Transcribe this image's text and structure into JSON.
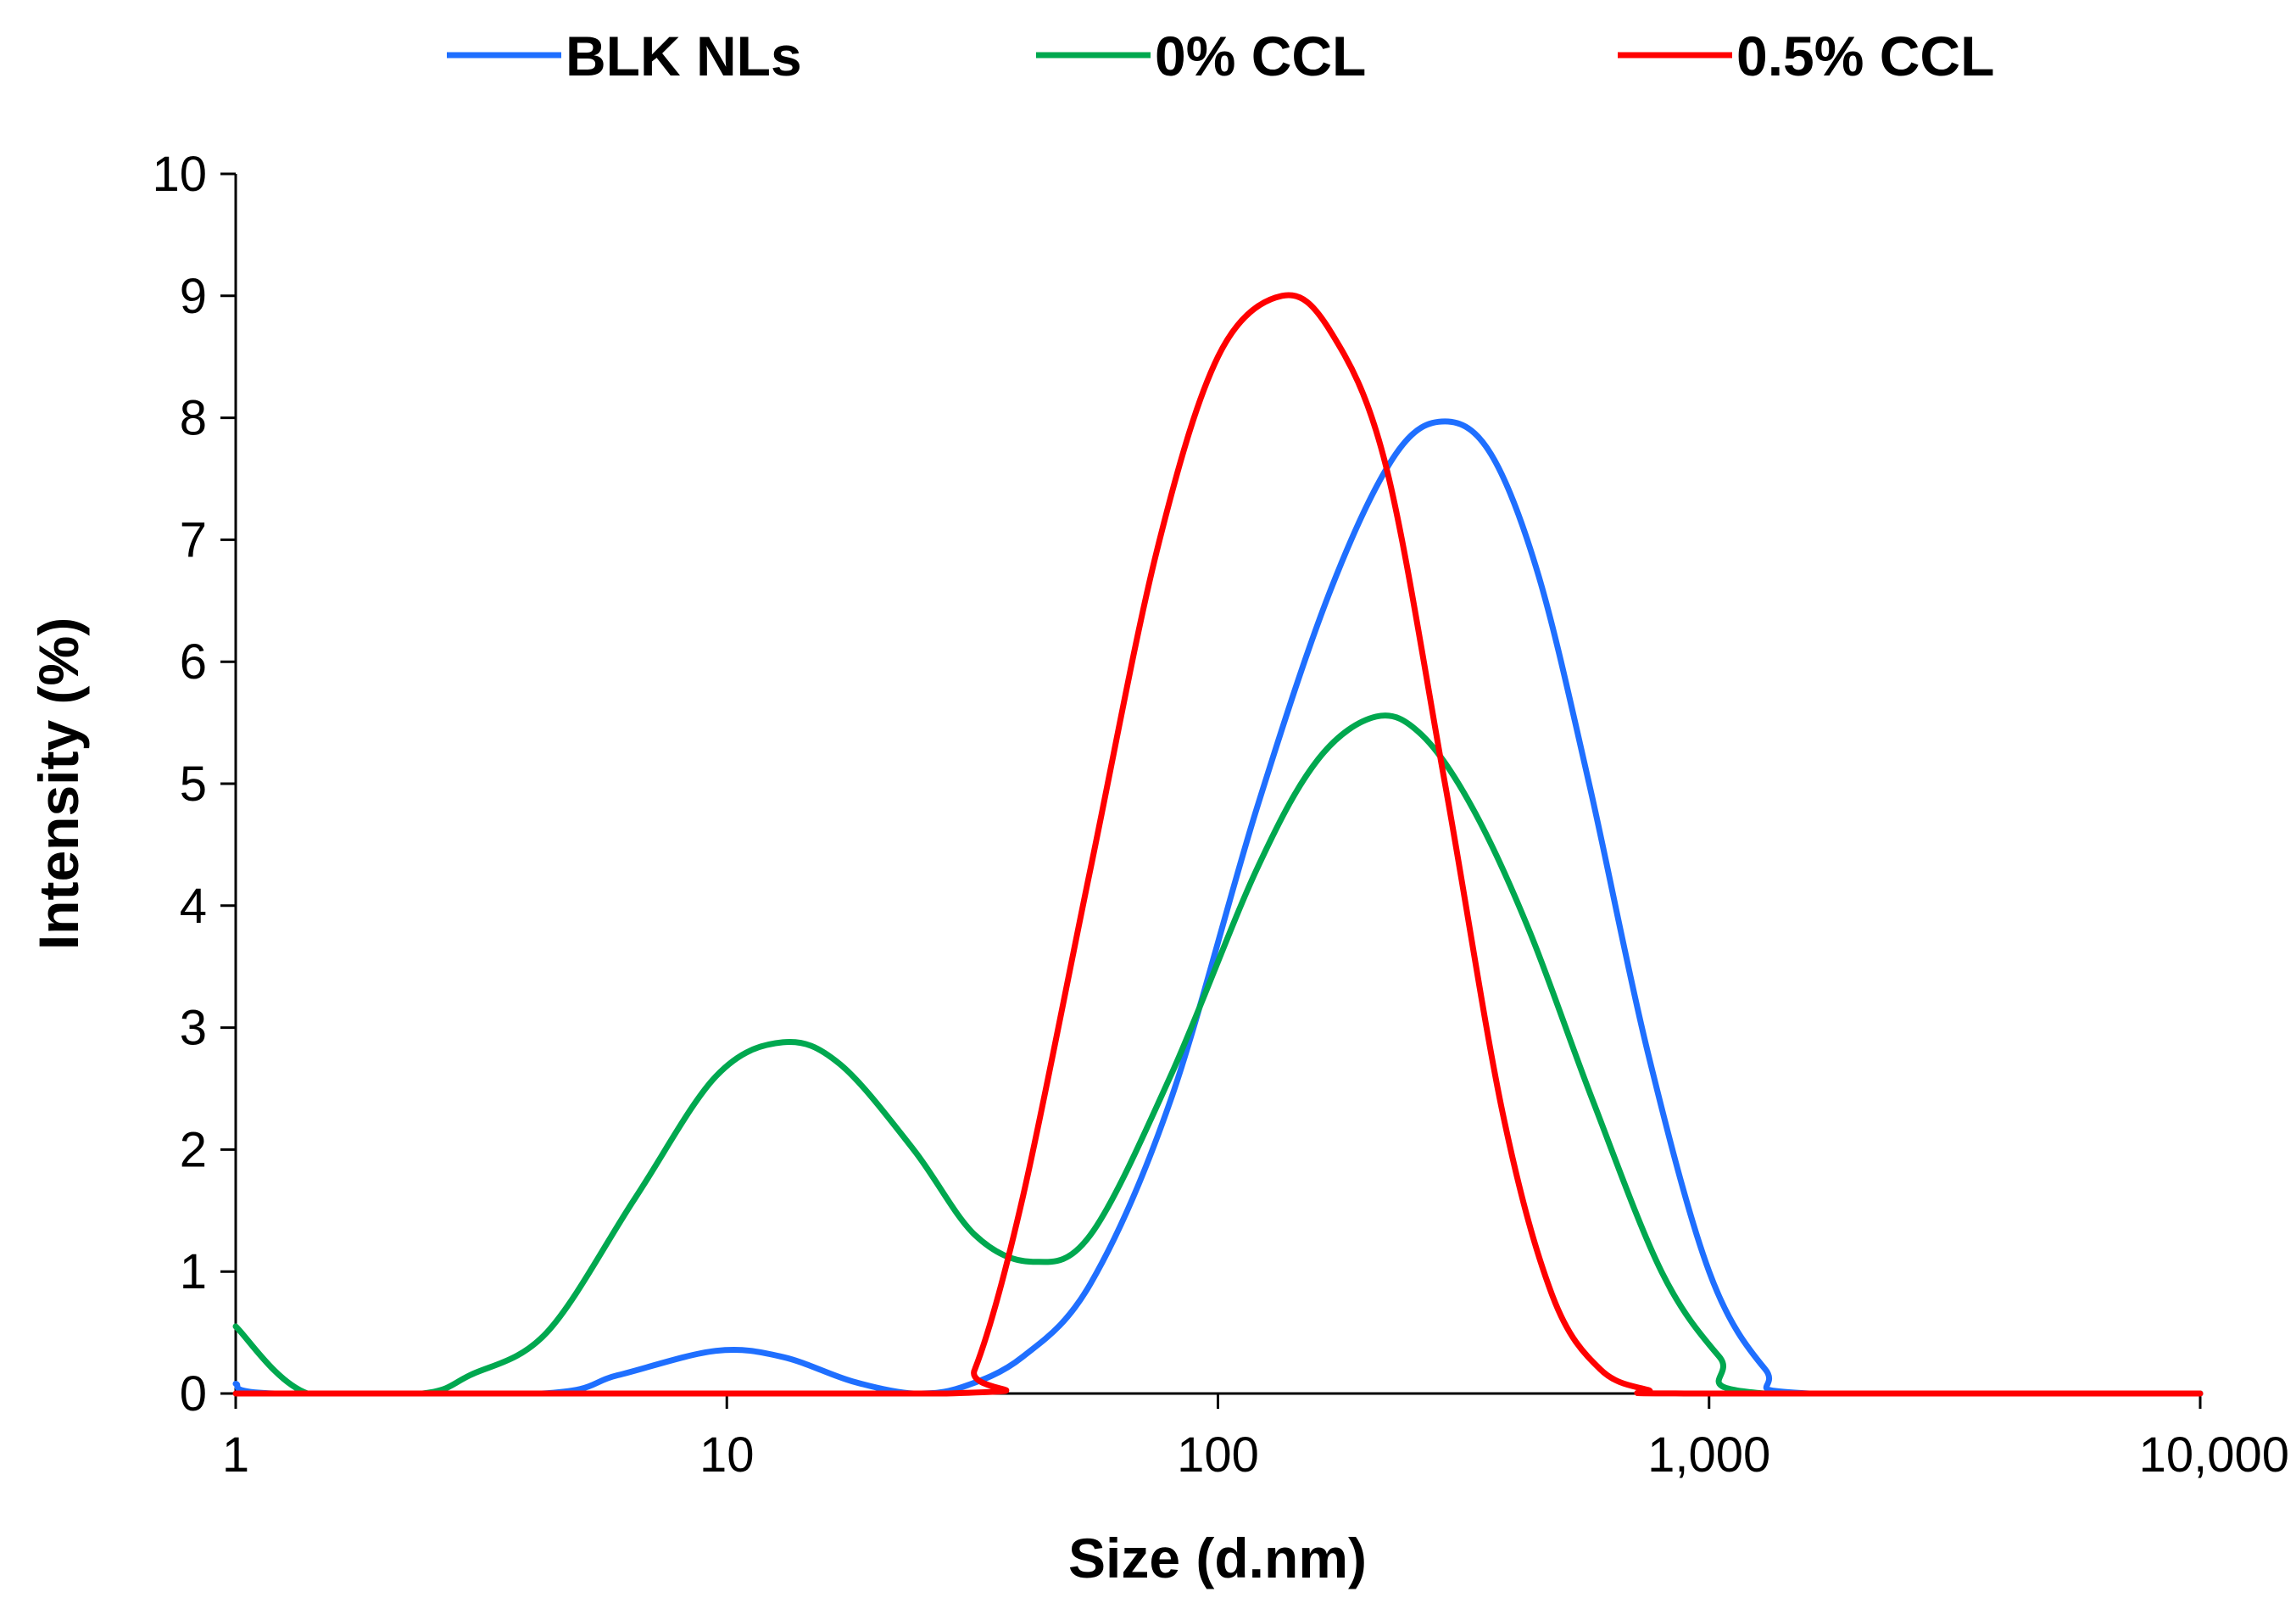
{
  "chart_data": {
    "type": "line",
    "title": "",
    "xlabel": "Size (d.nm)",
    "ylabel": "Intensity (%)",
    "xscale": "log",
    "xlim": [
      1,
      10000
    ],
    "ylim": [
      0,
      10
    ],
    "xticks": [
      1,
      10,
      100,
      1000,
      10000
    ],
    "xtick_labels": [
      "1",
      "10",
      "100",
      "1,000",
      "10,000"
    ],
    "yticks": [
      0,
      1,
      2,
      3,
      4,
      5,
      6,
      7,
      8,
      9,
      10
    ],
    "ytick_labels": [
      "0",
      "1",
      "2",
      "3",
      "4",
      "5",
      "6",
      "7",
      "8",
      "9",
      "10"
    ],
    "grid": false,
    "legend_position": "top",
    "series": [
      {
        "name": "BLK NLs",
        "color": "#1f6fff",
        "points": [
          [
            1,
            0.08
          ],
          [
            1.2,
            0
          ],
          [
            4.2,
            0
          ],
          [
            6,
            0.15
          ],
          [
            9.5,
            0.35
          ],
          [
            13,
            0.3
          ],
          [
            18,
            0.1
          ],
          [
            24,
            0
          ],
          [
            30,
            0.05
          ],
          [
            40,
            0.3
          ],
          [
            55,
            0.9
          ],
          [
            80,
            2.4
          ],
          [
            120,
            4.8
          ],
          [
            170,
            6.6
          ],
          [
            230,
            7.7
          ],
          [
            290,
            7.97
          ],
          [
            360,
            7.7
          ],
          [
            450,
            6.7
          ],
          [
            570,
            5.0
          ],
          [
            750,
            2.8
          ],
          [
            1000,
            1.0
          ],
          [
            1300,
            0.2
          ],
          [
            1600,
            0
          ],
          [
            10000,
            0
          ]
        ]
      },
      {
        "name": "0% CCL",
        "color": "#00a84f",
        "points": [
          [
            1,
            0.55
          ],
          [
            1.4,
            0
          ],
          [
            2.4,
            0
          ],
          [
            3,
            0.15
          ],
          [
            4.3,
            0.5
          ],
          [
            6.5,
            1.6
          ],
          [
            9.5,
            2.6
          ],
          [
            13,
            2.88
          ],
          [
            17,
            2.7
          ],
          [
            24,
            2.0
          ],
          [
            32,
            1.3
          ],
          [
            42,
            1.08
          ],
          [
            55,
            1.3
          ],
          [
            80,
            2.6
          ],
          [
            120,
            4.3
          ],
          [
            160,
            5.2
          ],
          [
            210,
            5.55
          ],
          [
            260,
            5.4
          ],
          [
            330,
            4.8
          ],
          [
            430,
            3.8
          ],
          [
            580,
            2.4
          ],
          [
            800,
            1.0
          ],
          [
            1050,
            0.3
          ],
          [
            1300,
            0
          ],
          [
            10000,
            0
          ]
        ]
      },
      {
        "name": "0.5% CCL",
        "color": "#ff0000",
        "points": [
          [
            1,
            0
          ],
          [
            28,
            0
          ],
          [
            32,
            0.2
          ],
          [
            40,
            1.6
          ],
          [
            55,
            4.3
          ],
          [
            75,
            6.9
          ],
          [
            100,
            8.5
          ],
          [
            135,
            9.0
          ],
          [
            170,
            8.7
          ],
          [
            220,
            7.6
          ],
          [
            290,
            5.0
          ],
          [
            380,
            2.3
          ],
          [
            480,
            0.8
          ],
          [
            600,
            0.2
          ],
          [
            750,
            0.03
          ],
          [
            900,
            0
          ],
          [
            10000,
            0
          ]
        ]
      }
    ]
  }
}
